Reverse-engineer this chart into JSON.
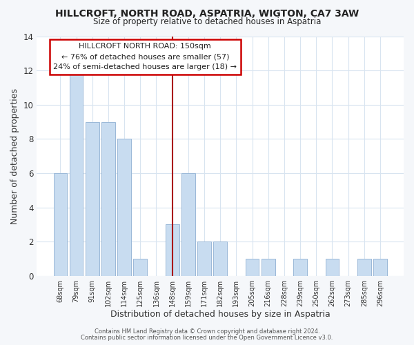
{
  "title": "HILLCROFT, NORTH ROAD, ASPATRIA, WIGTON, CA7 3AW",
  "subtitle": "Size of property relative to detached houses in Aspatria",
  "xlabel": "Distribution of detached houses by size in Aspatria",
  "ylabel": "Number of detached properties",
  "bar_labels": [
    "68sqm",
    "79sqm",
    "91sqm",
    "102sqm",
    "114sqm",
    "125sqm",
    "136sqm",
    "148sqm",
    "159sqm",
    "171sqm",
    "182sqm",
    "193sqm",
    "205sqm",
    "216sqm",
    "228sqm",
    "239sqm",
    "250sqm",
    "262sqm",
    "273sqm",
    "285sqm",
    "296sqm"
  ],
  "bar_values": [
    6,
    12,
    9,
    9,
    8,
    1,
    0,
    3,
    6,
    2,
    2,
    0,
    1,
    1,
    0,
    1,
    0,
    1,
    0,
    1,
    1
  ],
  "bar_color": "#c8dcf0",
  "bar_edge_color": "#9ab8d8",
  "highlight_index": 7,
  "highlight_line_color": "#aa0000",
  "annotation_title": "HILLCROFT NORTH ROAD: 150sqm",
  "annotation_line1": "← 76% of detached houses are smaller (57)",
  "annotation_line2": "24% of semi-detached houses are larger (18) →",
  "annotation_box_color": "#ffffff",
  "annotation_box_edge": "#cc0000",
  "ylim": [
    0,
    14
  ],
  "yticks": [
    0,
    2,
    4,
    6,
    8,
    10,
    12,
    14
  ],
  "footer_line1": "Contains HM Land Registry data © Crown copyright and database right 2024.",
  "footer_line2": "Contains public sector information licensed under the Open Government Licence v3.0.",
  "grid_color": "#d8e4f0",
  "background_color": "#ffffff",
  "fig_background_color": "#f5f7fa"
}
